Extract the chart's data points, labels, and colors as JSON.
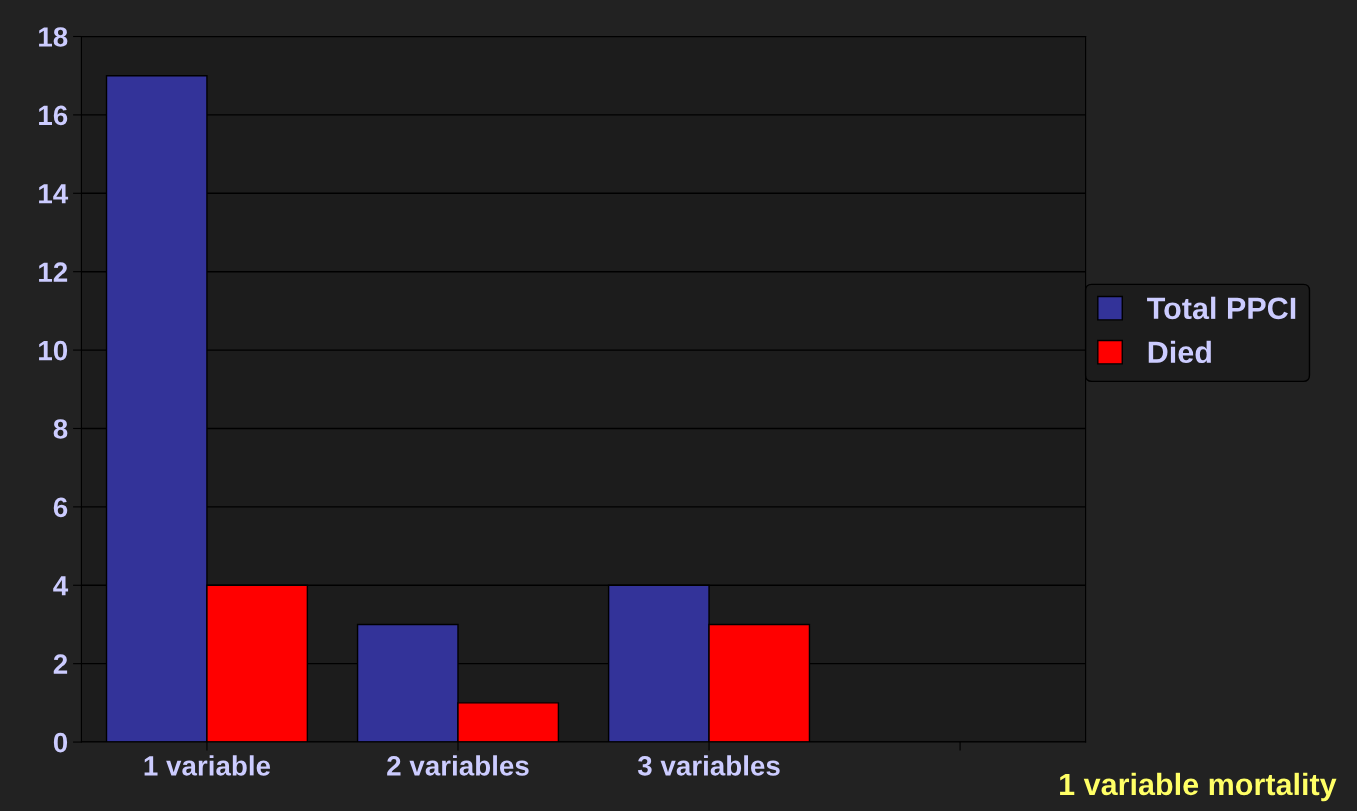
{
  "chart_data": {
    "type": "bar",
    "categories": [
      "1 variable",
      "2 variables",
      "3 variables",
      null
    ],
    "series": [
      {
        "name": "Total PPCI",
        "color": "#333399",
        "values": [
          17,
          3,
          4,
          null
        ]
      },
      {
        "name": "Died",
        "color": "#ff0000",
        "values": [
          4,
          1,
          3,
          null
        ]
      }
    ],
    "ylim": [
      0,
      18
    ],
    "yticks": [
      0,
      2,
      4,
      6,
      8,
      10,
      12,
      14,
      16,
      18
    ],
    "grid": "y",
    "legend": "right",
    "annotations": [
      "1 variable mortality"
    ]
  }
}
